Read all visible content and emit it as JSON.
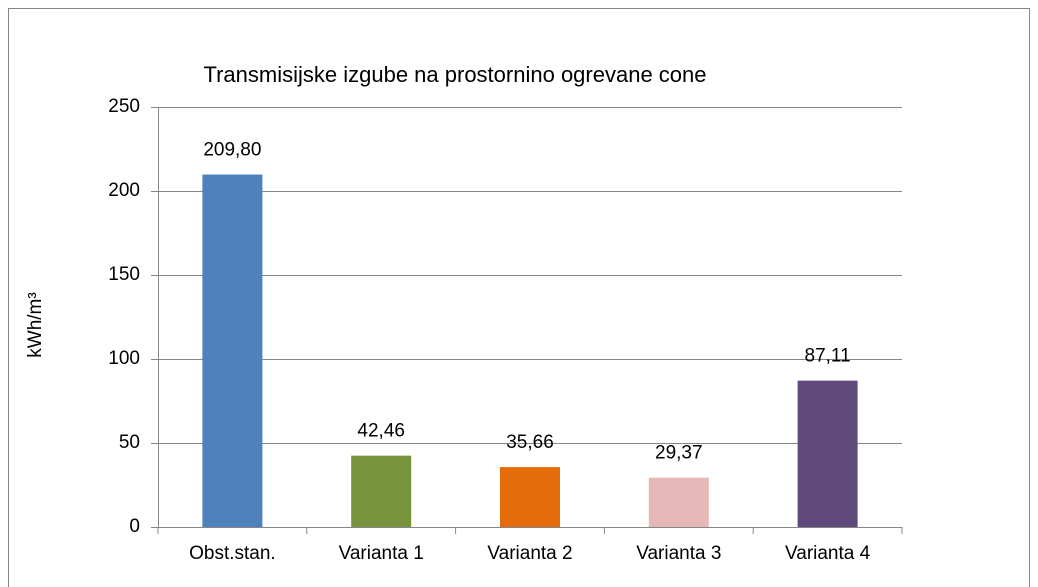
{
  "chart_data": {
    "type": "bar",
    "title": "Transmisijske izgube na prostornino ogrevane cone",
    "y_label": "kWh/m³",
    "categories": [
      "Obst.stan.",
      "Varianta 1",
      "Varianta 2",
      "Varianta 3",
      "Varianta 4"
    ],
    "values": [
      209.8,
      42.46,
      35.66,
      29.37,
      87.11
    ],
    "value_labels": [
      "209,80",
      "42,46",
      "35,66",
      "29,37",
      "87,11"
    ],
    "colors": [
      "#4f81bd",
      "#77933c",
      "#e46c0a",
      "#e6b9b8",
      "#604a7b"
    ],
    "ylim": [
      0,
      250
    ],
    "yticks": [
      0,
      50,
      100,
      150,
      200,
      250
    ],
    "grid": true
  }
}
